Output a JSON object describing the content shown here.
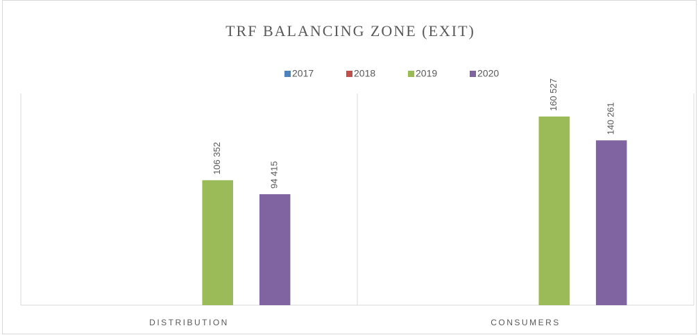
{
  "chart_data": {
    "type": "bar",
    "title": "TRF BALANCING ZONE (EXIT)",
    "categories": [
      "DISTRIBUTION",
      "CONSUMERS"
    ],
    "series": [
      {
        "name": "2017",
        "color": "#4f81bd",
        "values": [
          null,
          null
        ],
        "value_labels": [
          null,
          null
        ]
      },
      {
        "name": "2018",
        "color": "#c0504d",
        "values": [
          null,
          null
        ],
        "value_labels": [
          null,
          null
        ]
      },
      {
        "name": "2019",
        "color": "#9bbb59",
        "values": [
          106352,
          160527
        ],
        "value_labels": [
          "106 352",
          "160 527"
        ]
      },
      {
        "name": "2020",
        "color": "#8064a2",
        "values": [
          94415,
          140261
        ],
        "value_labels": [
          "94 415",
          "140 261"
        ]
      }
    ],
    "ylim": [
      0,
      180000
    ],
    "legend": "top"
  }
}
